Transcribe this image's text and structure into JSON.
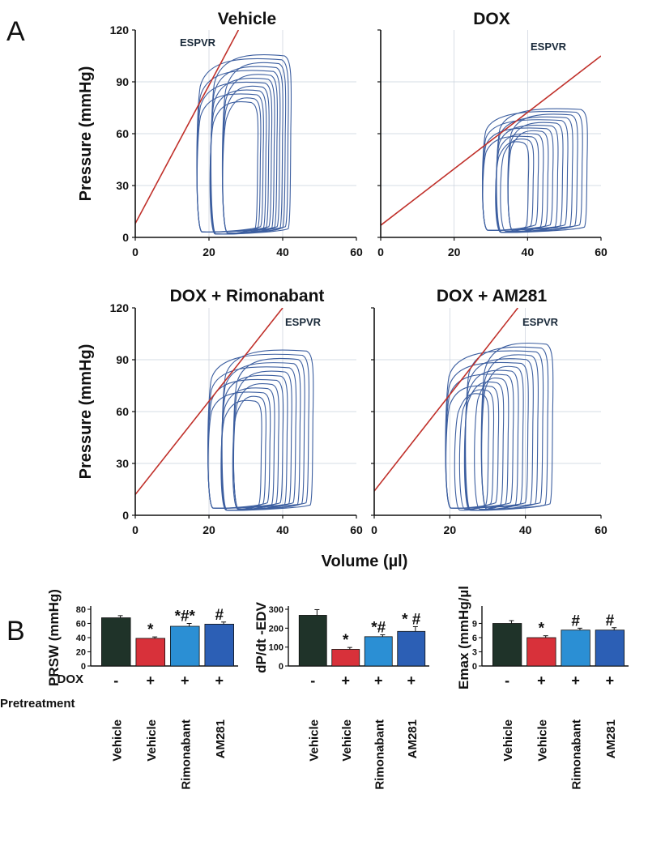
{
  "panel_labels": {
    "a": "A",
    "b": "B"
  },
  "chart_data": [
    {
      "type": "line",
      "title": "Vehicle",
      "annotation": "ESPVR",
      "ylabel": "Pressure (mmHg)",
      "xlim": [
        0,
        60
      ],
      "ylim": [
        0,
        120
      ],
      "xticks": [
        0,
        20,
        40,
        60
      ],
      "yticks": [
        0,
        30,
        60,
        90,
        120
      ],
      "espvr_line": {
        "x": [
          0,
          28
        ],
        "y": [
          8,
          120
        ]
      },
      "loops": {
        "count": 13,
        "esv": [
          17,
          25
        ],
        "edv": [
          33,
          42
        ],
        "p_peak": [
          78,
          105
        ],
        "p_min": 2
      },
      "grid": true
    },
    {
      "type": "line",
      "title": "DOX",
      "annotation": "ESPVR",
      "xlim": [
        0,
        60
      ],
      "ylim": [
        0,
        120
      ],
      "xticks": [
        0,
        20,
        40,
        60
      ],
      "yticks": [
        0,
        30,
        60,
        90,
        120
      ],
      "espvr_line": {
        "x": [
          0,
          60
        ],
        "y": [
          7,
          105
        ]
      },
      "loops": {
        "count": 13,
        "esv": [
          28,
          36
        ],
        "edv": [
          40,
          56
        ],
        "p_peak": [
          55,
          74
        ],
        "p_min": 3
      },
      "grid": true
    },
    {
      "type": "line",
      "title": "DOX + Rimonabant",
      "annotation": "ESPVR",
      "ylabel": "Pressure (mmHg)",
      "xlim": [
        0,
        60
      ],
      "ylim": [
        0,
        120
      ],
      "xticks": [
        0,
        20,
        40,
        60
      ],
      "yticks": [
        0,
        30,
        60,
        90,
        120
      ],
      "espvr_line": {
        "x": [
          0,
          40
        ],
        "y": [
          12,
          120
        ]
      },
      "loops": {
        "count": 13,
        "esv": [
          20,
          28
        ],
        "edv": [
          34,
          48
        ],
        "p_peak": [
          66,
          95
        ],
        "p_min": 3
      },
      "grid": true
    },
    {
      "type": "line",
      "title": "DOX + AM281",
      "annotation": "ESPVR",
      "xlim": [
        0,
        60
      ],
      "ylim": [
        0,
        120
      ],
      "xticks": [
        0,
        20,
        40,
        60
      ],
      "yticks": [
        0,
        30,
        60,
        90,
        120
      ],
      "espvr_line": {
        "x": [
          0,
          38
        ],
        "y": [
          14,
          120
        ]
      },
      "loops": {
        "count": 14,
        "esv": [
          19,
          30
        ],
        "edv": [
          30,
          47
        ],
        "p_peak": [
          70,
          99
        ],
        "p_min": 3
      },
      "grid": true
    },
    {
      "type": "bar",
      "ylabel": "PRSW (mmHg)",
      "ylim": [
        0,
        80
      ],
      "yticks": [
        0,
        20,
        40,
        60,
        80
      ],
      "categories": [
        "Vehicle",
        "Vehicle",
        "Rimonabant",
        "AM281"
      ],
      "values": [
        68,
        39,
        56,
        59
      ],
      "errors": [
        3,
        2,
        4,
        3
      ],
      "annotations": [
        "",
        "*",
        "*#*",
        "#"
      ],
      "colors": [
        "#1f3329",
        "#d8313a",
        "#2b8fd4",
        "#2c5fb5"
      ]
    },
    {
      "type": "bar",
      "ylabel": "dP/dt -EDV",
      "ylim": [
        0,
        300
      ],
      "yticks": [
        0,
        100,
        200,
        300
      ],
      "categories": [
        "Vehicle",
        "Vehicle",
        "Rimonabant",
        "AM281"
      ],
      "values": [
        268,
        88,
        155,
        183
      ],
      "errors": [
        30,
        10,
        10,
        25
      ],
      "annotations": [
        "",
        "*",
        "*#",
        "* #"
      ],
      "colors": [
        "#1f3329",
        "#d8313a",
        "#2b8fd4",
        "#2c5fb5"
      ]
    },
    {
      "type": "bar",
      "ylabel": "Emax (mmHg/µl",
      "ylim": [
        0,
        12
      ],
      "yticks": [
        0,
        3,
        6,
        9
      ],
      "categories": [
        "Vehicle",
        "Vehicle",
        "Rimonabant",
        "AM281"
      ],
      "values": [
        9.0,
        6.0,
        7.6,
        7.6
      ],
      "errors": [
        0.6,
        0.4,
        0.4,
        0.5
      ],
      "annotations": [
        "",
        "*",
        "#",
        "#"
      ],
      "colors": [
        "#1f3329",
        "#d8313a",
        "#2b8fd4",
        "#2c5fb5"
      ]
    }
  ],
  "shared": {
    "xlabel": "Volume (µl)",
    "dox_label": "DOX",
    "dox_signs": [
      "-",
      "+",
      "+",
      "+"
    ],
    "pretreatment_label": "Pretreatment"
  },
  "colors": {
    "loop": "#3d5fa0",
    "espvr": "#c0302a",
    "grid": "#c8d0dc"
  }
}
